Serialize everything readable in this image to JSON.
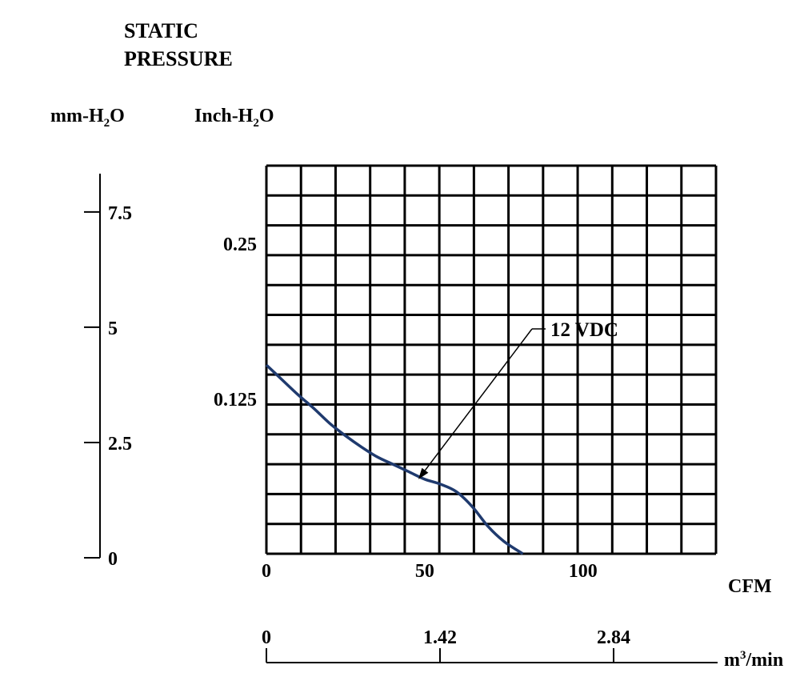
{
  "chart_data": {
    "type": "line",
    "title": "",
    "y_title_line1": "STATIC",
    "y_title_line2": "PRESSURE",
    "y_left_unit_base": "mm-H",
    "y_left_unit_sub": "2",
    "y_left_unit_tail": "O",
    "y_right_unit_base": "Inch-H",
    "y_right_unit_sub": "2",
    "y_right_unit_tail": "O",
    "mm_ticks": [
      {
        "value": 0,
        "label": "0"
      },
      {
        "value": 2.5,
        "label": "2.5"
      },
      {
        "value": 5,
        "label": "5"
      },
      {
        "value": 7.5,
        "label": "7.5"
      }
    ],
    "inch_ticks": [
      {
        "value": 0.125,
        "label": "0.125"
      },
      {
        "value": 0.25,
        "label": "0.25"
      }
    ],
    "xlabel": "CFM",
    "x_ticks": [
      {
        "value": 0,
        "label": "0"
      },
      {
        "value": 50,
        "label": "50"
      },
      {
        "value": 100,
        "label": "100"
      }
    ],
    "xlim": [
      0,
      142
    ],
    "ylim_inch": [
      0,
      0.3125
    ],
    "m3_label_base": "m",
    "m3_label_sup": "3",
    "m3_label_tail": "/min",
    "m3_ticks": [
      {
        "value": 0,
        "label": "0"
      },
      {
        "value": 1.42,
        "label": "1.42"
      },
      {
        "value": 2.84,
        "label": "2.84"
      }
    ],
    "grid": true,
    "series": [
      {
        "name": "12 VDC",
        "color": "#1f3a6e",
        "x": [
          0,
          5,
          10,
          15,
          20,
          25,
          30,
          35,
          40,
          45,
          50,
          55,
          60,
          65,
          70,
          75,
          81
        ],
        "y": [
          0.152,
          0.14,
          0.128,
          0.117,
          0.105,
          0.095,
          0.086,
          0.078,
          0.072,
          0.066,
          0.06,
          0.056,
          0.05,
          0.038,
          0.022,
          0.01,
          0.0
        ]
      }
    ],
    "annotation": {
      "text": "12 VDC",
      "series": "12 VDC",
      "point_x": 48,
      "point_y": 0.06
    }
  }
}
